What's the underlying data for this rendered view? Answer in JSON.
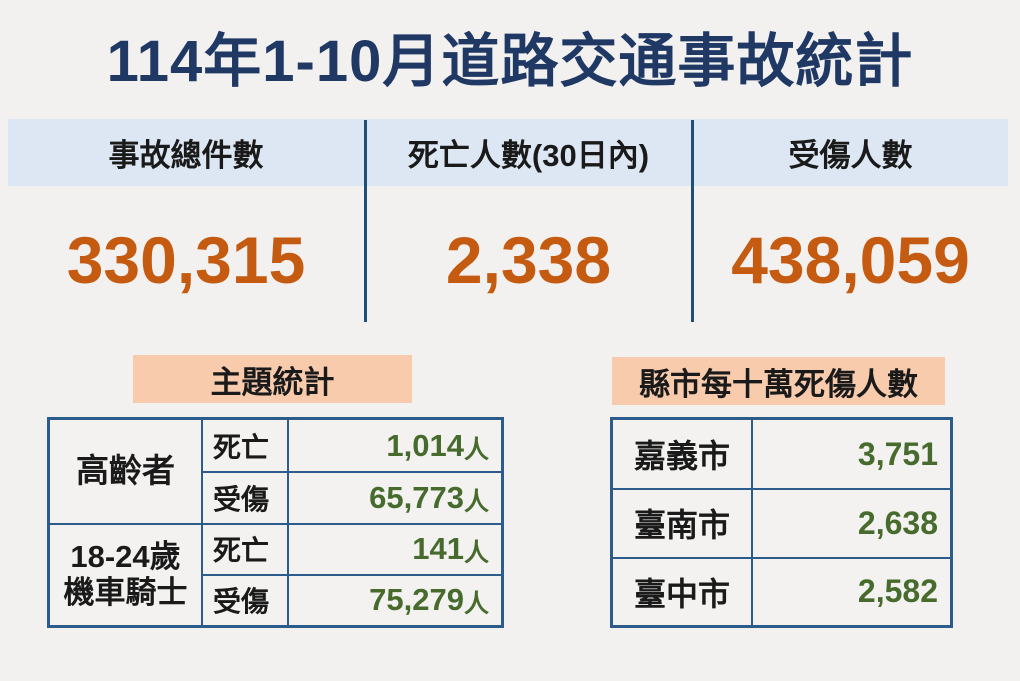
{
  "title": "114年1-10月道路交通事故統計",
  "summary": {
    "columns": [
      {
        "label": "事故總件數",
        "value": "330,315"
      },
      {
        "label": "死亡人數(30日內)",
        "value": "2,338"
      },
      {
        "label": "受傷人數",
        "value": "438,059"
      }
    ]
  },
  "topic_section": {
    "title": "主題統計",
    "groups": [
      {
        "lines": [
          "高齡者"
        ]
      },
      {
        "lines": [
          "18-24歲",
          "機車騎士"
        ]
      }
    ],
    "rows": [
      {
        "type": "死亡",
        "value": "1,014",
        "unit": "人"
      },
      {
        "type": "受傷",
        "value": "65,773",
        "unit": "人"
      },
      {
        "type": "死亡",
        "value": "141",
        "unit": "人"
      },
      {
        "type": "受傷",
        "value": "75,279",
        "unit": "人"
      }
    ]
  },
  "city_section": {
    "title": "縣市每十萬死傷人數",
    "rows": [
      {
        "city": "嘉義市",
        "value": "3,751"
      },
      {
        "city": "臺南市",
        "value": "2,638"
      },
      {
        "city": "臺中市",
        "value": "2,582"
      }
    ]
  },
  "colors": {
    "title_navy": "#1f3864",
    "band_blue": "#dce7f3",
    "divider_navy": "#1f4e79",
    "number_orange": "#c55a11",
    "section_peach": "#f8cbad",
    "table_border_blue": "#2b5c8c",
    "value_green": "#466b2d",
    "background": "#f2f1ef"
  }
}
